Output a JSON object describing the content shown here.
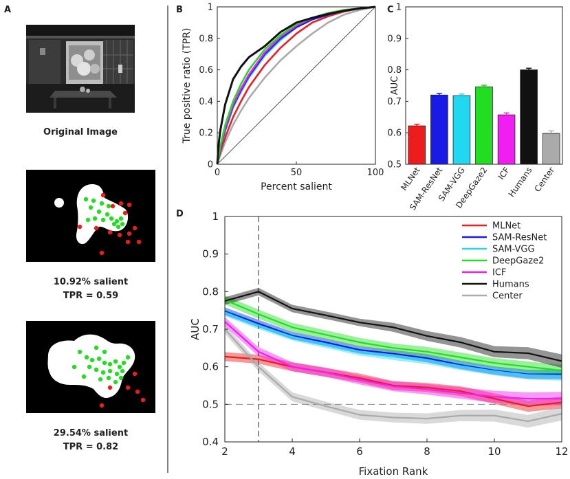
{
  "panels": {
    "a": {
      "letter": "A",
      "caption1": "Original Image",
      "caption2_line1": "10.92% salient",
      "caption2_line2": "TPR = 0.59",
      "caption3_line1": "29.54% salient",
      "caption3_line2": "TPR = 0.82"
    },
    "b": {
      "letter": "B"
    },
    "c": {
      "letter": "C"
    },
    "d": {
      "letter": "D"
    }
  },
  "colors": {
    "MLNet": "#ee1c1c",
    "SAM-ResNet": "#1a1ae6",
    "SAM-VGG": "#22d8f0",
    "DeepGaze2": "#22dd22",
    "ICF": "#f01ef0",
    "Humans": "#111111",
    "Center": "#aaaaaa"
  },
  "chart_data": [
    {
      "id": "B",
      "type": "line",
      "xlabel": "Percent salient",
      "ylabel": "True positive ratio (TPR)",
      "xlim": [
        0,
        100
      ],
      "ylim": [
        0,
        1
      ],
      "xticks": [
        0,
        50,
        100
      ],
      "yticks": [
        0,
        0.2,
        0.4,
        0.6,
        0.8,
        1
      ],
      "xtick_labels": [
        "0",
        "50",
        "100"
      ],
      "ytick_labels": [
        "0",
        "0.2",
        "0.4",
        "0.6",
        "0.8",
        "1"
      ],
      "x": [
        0,
        1,
        2,
        5,
        10,
        15,
        20,
        30,
        40,
        50,
        60,
        70,
        80,
        90,
        100
      ],
      "series": [
        {
          "name": "Center",
          "values": [
            0,
            0.03,
            0.06,
            0.14,
            0.25,
            0.34,
            0.42,
            0.55,
            0.66,
            0.75,
            0.83,
            0.9,
            0.95,
            0.98,
            1.0
          ]
        },
        {
          "name": "MLNet",
          "values": [
            0,
            0.04,
            0.08,
            0.17,
            0.3,
            0.4,
            0.49,
            0.63,
            0.74,
            0.83,
            0.9,
            0.94,
            0.97,
            0.99,
            1.0
          ]
        },
        {
          "name": "SAM-VGG",
          "values": [
            0,
            0.05,
            0.1,
            0.21,
            0.36,
            0.46,
            0.55,
            0.69,
            0.79,
            0.87,
            0.92,
            0.95,
            0.975,
            0.99,
            1.0
          ]
        },
        {
          "name": "SAM-ResNet",
          "values": [
            0,
            0.05,
            0.1,
            0.22,
            0.37,
            0.47,
            0.56,
            0.7,
            0.8,
            0.87,
            0.92,
            0.95,
            0.975,
            0.99,
            1.0
          ]
        },
        {
          "name": "ICF",
          "values": [
            0,
            0.06,
            0.11,
            0.23,
            0.38,
            0.48,
            0.57,
            0.71,
            0.81,
            0.88,
            0.93,
            0.96,
            0.98,
            0.99,
            1.0
          ]
        },
        {
          "name": "DeepGaze2",
          "values": [
            0,
            0.06,
            0.12,
            0.25,
            0.4,
            0.51,
            0.6,
            0.73,
            0.82,
            0.89,
            0.93,
            0.96,
            0.98,
            0.99,
            1.0
          ]
        },
        {
          "name": "Humans",
          "values": [
            0,
            0.14,
            0.22,
            0.38,
            0.54,
            0.62,
            0.68,
            0.75,
            0.84,
            0.9,
            0.93,
            0.955,
            0.975,
            0.99,
            1.0
          ]
        }
      ],
      "diagonal": true
    },
    {
      "id": "C",
      "type": "bar",
      "ylabel": "AUC",
      "ylim": [
        0.5,
        1
      ],
      "yticks": [
        0.5,
        0.6,
        0.7,
        0.8,
        0.9,
        1
      ],
      "ytick_labels": [
        "0.5",
        "0.6",
        "0.7",
        "0.8",
        "0.9",
        "1"
      ],
      "categories": [
        "MLNet",
        "SAM-ResNet",
        "SAM-VGG",
        "DeepGaze2",
        "ICF",
        "Humans",
        "Center"
      ],
      "values": [
        0.622,
        0.72,
        0.718,
        0.746,
        0.657,
        0.8,
        0.598
      ],
      "errors": [
        0.005,
        0.005,
        0.005,
        0.005,
        0.006,
        0.005,
        0.008
      ]
    },
    {
      "id": "D",
      "type": "line",
      "xlabel": "Fixation Rank",
      "ylabel": "AUC",
      "xlim": [
        2,
        12
      ],
      "ylim": [
        0.4,
        1
      ],
      "xticks": [
        2,
        4,
        6,
        8,
        10,
        12
      ],
      "yticks": [
        0.4,
        0.5,
        0.6,
        0.7,
        0.8,
        0.9,
        1
      ],
      "xtick_labels": [
        "2",
        "4",
        "6",
        "8",
        "10",
        "12"
      ],
      "ytick_labels": [
        "0.4",
        "0.5",
        "0.6",
        "0.7",
        "0.8",
        "0.9",
        "1"
      ],
      "x": [
        2,
        3,
        4,
        5,
        6,
        7,
        8,
        9,
        10,
        11,
        12
      ],
      "vline": 3,
      "hline": 0.5,
      "legend_position": "top-right",
      "series": [
        {
          "name": "MLNet",
          "values": [
            0.627,
            0.62,
            0.6,
            0.585,
            0.57,
            0.55,
            0.545,
            0.535,
            0.515,
            0.495,
            0.505
          ],
          "band": [
            0.012,
            0.012,
            0.012,
            0.012,
            0.012,
            0.012,
            0.012,
            0.013,
            0.014,
            0.015,
            0.016
          ]
        },
        {
          "name": "SAM-ResNet",
          "values": [
            0.748,
            0.715,
            0.683,
            0.665,
            0.645,
            0.635,
            0.623,
            0.605,
            0.59,
            0.58,
            0.58
          ],
          "band": [
            0.01,
            0.01,
            0.01,
            0.01,
            0.01,
            0.01,
            0.011,
            0.011,
            0.011,
            0.012,
            0.013
          ]
        },
        {
          "name": "SAM-VGG",
          "values": [
            0.745,
            0.71,
            0.68,
            0.66,
            0.64,
            0.628,
            0.618,
            0.602,
            0.588,
            0.578,
            0.576
          ],
          "band": [
            0.01,
            0.01,
            0.01,
            0.01,
            0.01,
            0.01,
            0.011,
            0.011,
            0.011,
            0.012,
            0.013
          ]
        },
        {
          "name": "DeepGaze2",
          "values": [
            0.778,
            0.74,
            0.705,
            0.685,
            0.665,
            0.65,
            0.64,
            0.625,
            0.61,
            0.6,
            0.59
          ],
          "band": [
            0.012,
            0.012,
            0.012,
            0.012,
            0.012,
            0.012,
            0.013,
            0.013,
            0.013,
            0.014,
            0.015
          ]
        },
        {
          "name": "ICF",
          "values": [
            0.72,
            0.64,
            0.6,
            0.585,
            0.565,
            0.548,
            0.54,
            0.53,
            0.52,
            0.515,
            0.515
          ],
          "band": [
            0.012,
            0.012,
            0.012,
            0.012,
            0.012,
            0.013,
            0.014,
            0.015,
            0.016,
            0.017,
            0.018
          ]
        },
        {
          "name": "Humans",
          "values": [
            0.775,
            0.8,
            0.755,
            0.737,
            0.718,
            0.705,
            0.682,
            0.665,
            0.64,
            0.636,
            0.615
          ],
          "band": [
            0.01,
            0.01,
            0.01,
            0.01,
            0.01,
            0.012,
            0.013,
            0.014,
            0.015,
            0.016,
            0.018
          ]
        },
        {
          "name": "Center",
          "values": [
            0.7,
            0.6,
            0.52,
            0.495,
            0.472,
            0.465,
            0.462,
            0.47,
            0.47,
            0.455,
            0.475
          ],
          "band": [
            0.012,
            0.012,
            0.012,
            0.012,
            0.013,
            0.013,
            0.014,
            0.015,
            0.016,
            0.017,
            0.018
          ]
        }
      ]
    }
  ]
}
